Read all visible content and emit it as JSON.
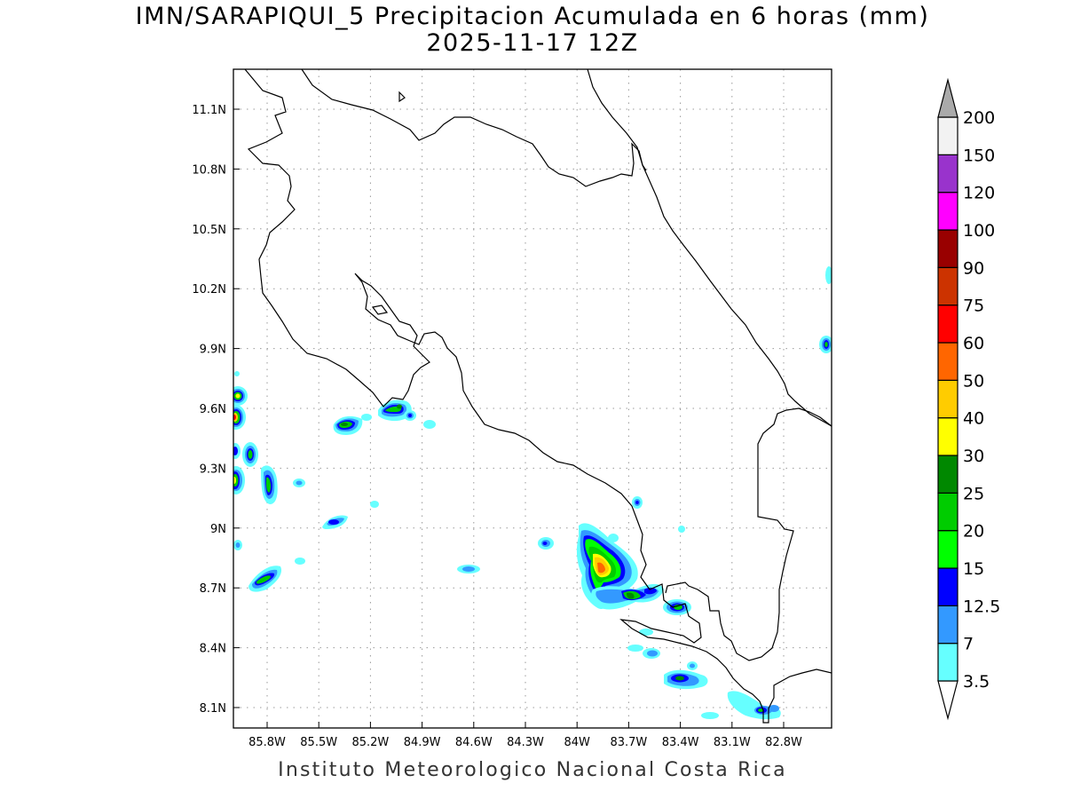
{
  "title_line1": "IMN/SARAPIQUI_5 Precipitacion Acumulada en 6 horas (mm)",
  "title_line2": "2025-11-17 12Z",
  "footer": "Instituto Meteorologico Nacional Costa Rica",
  "map": {
    "lat_ticks": [
      "11.1N",
      "10.8N",
      "10.5N",
      "10.2N",
      "9.9N",
      "9.6N",
      "9.3N",
      "9N",
      "8.7N",
      "8.4N",
      "8.1N"
    ],
    "lon_ticks": [
      "85.8W",
      "85.5W",
      "85.2W",
      "84.9W",
      "84.6W",
      "84.3W",
      "84W",
      "83.7W",
      "83.4W",
      "83.1W",
      "82.8W"
    ],
    "grid": true,
    "coastline_color": "#000000"
  },
  "colorbar": {
    "labels": [
      "3.5",
      "7",
      "12.5",
      "15",
      "20",
      "25",
      "30",
      "40",
      "50",
      "60",
      "75",
      "90",
      "100",
      "120",
      "150",
      "200"
    ],
    "colors": [
      "#66ffff",
      "#3399ff",
      "#0000ff",
      "#00ff00",
      "#00cc00",
      "#008800",
      "#ffff00",
      "#ffcc00",
      "#ff6600",
      "#ff0000",
      "#cc3300",
      "#990000",
      "#ff00ff",
      "#9933cc",
      "#f2f2f2",
      "#aaaaaa"
    ]
  },
  "precip_cells": [
    {
      "lon": -83.85,
      "lat": 8.82,
      "max_class": "50"
    },
    {
      "lon": -85.97,
      "lat": 9.56,
      "max_class": "60"
    },
    {
      "lon": -85.97,
      "lat": 9.67,
      "max_class": "30"
    },
    {
      "lon": -85.97,
      "lat": 9.25,
      "max_class": "30"
    },
    {
      "lon": -85.88,
      "lat": 9.37,
      "max_class": "25"
    },
    {
      "lon": -85.78,
      "lat": 9.21,
      "max_class": "25"
    },
    {
      "lon": -85.32,
      "lat": 9.52,
      "max_class": "25"
    },
    {
      "lon": -85.07,
      "lat": 9.59,
      "max_class": "25"
    },
    {
      "lon": -85.85,
      "lat": 8.74,
      "max_class": "25"
    },
    {
      "lon": -83.68,
      "lat": 8.66,
      "max_class": "25"
    },
    {
      "lon": -83.4,
      "lat": 8.6,
      "max_class": "20"
    },
    {
      "lon": -83.39,
      "lat": 8.25,
      "max_class": "15"
    },
    {
      "lon": -82.82,
      "lat": 8.09,
      "max_class": "20"
    },
    {
      "lon": -85.43,
      "lat": 9.03,
      "max_class": "15"
    },
    {
      "lon": -84.15,
      "lat": 8.9,
      "max_class": "15"
    },
    {
      "lon": -82.55,
      "lat": 9.92,
      "max_class": "20"
    }
  ]
}
